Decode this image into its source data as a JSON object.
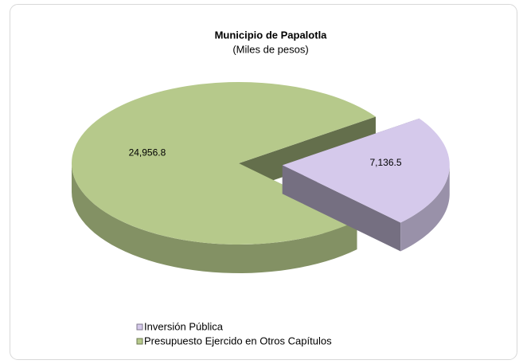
{
  "chart_data": {
    "type": "pie",
    "title": "Municipio de Papalotla",
    "subtitle": "(Miles de pesos)",
    "categories": [
      "Inversión Pública",
      "Presupuesto Ejercido en Otros Capítulos"
    ],
    "values": [
      7136.5,
      24956.8
    ],
    "value_labels": [
      "7,136.5",
      "24,956.8"
    ],
    "colors": [
      "#d5c9eb",
      "#b6c98b"
    ],
    "legend": "bottom"
  }
}
